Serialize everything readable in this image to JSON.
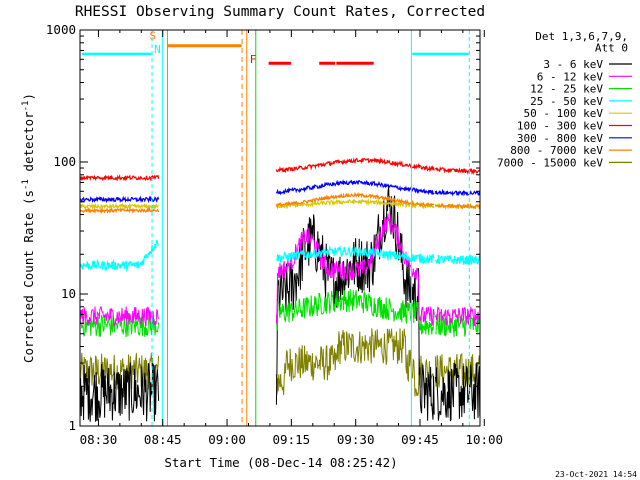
{
  "chart_data": {
    "type": "line",
    "title": "RHESSI Observing Summary Count Rates, Corrected",
    "xlabel": "Start Time (08-Dec-14 08:25:42)",
    "ylabel": "Corrected Count Rate (s⁻¹ detector⁻¹)",
    "ylabel_main": "Corrected Count Rate (s",
    "ylabel_sup1": "-1",
    "ylabel_mid": " detector",
    "ylabel_sup2": "-1",
    "ylabel_end": ")",
    "yscale": "log",
    "ylim": [
      1,
      1000
    ],
    "xlim_minutes": [
      0,
      93.3
    ],
    "x_ticks": [
      {
        "label": "08:30",
        "minute": 4.3
      },
      {
        "label": "08:45",
        "minute": 19.3
      },
      {
        "label": "09:00",
        "minute": 34.3
      },
      {
        "label": "09:15",
        "minute": 49.3
      },
      {
        "label": "09:30",
        "minute": 64.3
      },
      {
        "label": "09:45",
        "minute": 79.3
      },
      {
        "label": "10:00",
        "minute": 94.3
      }
    ],
    "y_ticks": [
      {
        "label": "1",
        "value": 1
      },
      {
        "label": "10",
        "value": 10
      },
      {
        "label": "100",
        "value": 100
      },
      {
        "label": "1000",
        "value": 1000
      }
    ],
    "legend_position": "right",
    "legend_header": [
      "Det 1,3,6,7,9,",
      "Att 0"
    ],
    "series": [
      {
        "name": "3 - 6 keV",
        "color": "#000000"
      },
      {
        "name": "6 - 12 keV",
        "color": "#ff00ff"
      },
      {
        "name": "12 - 25 keV",
        "color": "#00e000"
      },
      {
        "name": "25 - 50 keV",
        "color": "#00ffff"
      },
      {
        "name": "50 - 100 keV",
        "color": "#d8c800"
      },
      {
        "name": "100 - 300 keV",
        "color": "#ff0000"
      },
      {
        "name": "300 - 800 keV",
        "color": "#0000ff"
      },
      {
        "name": "800 - 7000 keV",
        "color": "#ff8000"
      },
      {
        "name": "7000 - 15000 keV",
        "color": "#808000"
      }
    ],
    "flags": [
      {
        "label": "S",
        "color": "#ff8000"
      },
      {
        "label": "N",
        "color": "#00ffff"
      },
      {
        "label": "F",
        "color": "#ff0000"
      }
    ],
    "timestamp": "23-Oct-2021 14:54"
  }
}
